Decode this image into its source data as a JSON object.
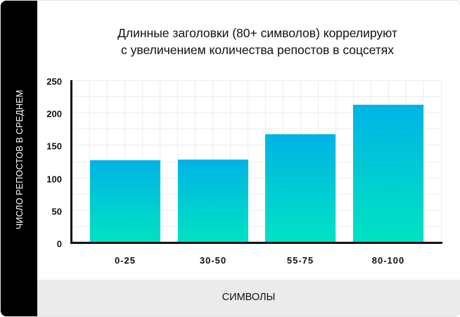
{
  "chart_data": {
    "type": "bar",
    "title": "Длинные заголовки (80+ символов) коррелируют с увеличением количества репостов в соцсетях",
    "title_lines": [
      "Длинные заголовки (80+ символов) коррелируют",
      "с увеличением количества репостов в соцсетях"
    ],
    "xlabel": "СИМВОЛЫ",
    "ylabel": "ЧИСЛО РЕПОСТОВ В СРЕДНЕМ",
    "categories": [
      "0-25",
      "30-50",
      "55-75",
      "80-100"
    ],
    "values": [
      127,
      128,
      167,
      212
    ],
    "ylim": [
      0,
      250
    ],
    "yticks": [
      "0",
      "50",
      "100",
      "150",
      "200",
      "250"
    ],
    "grid": true,
    "legend": null,
    "colors": {
      "bar_top": "#00b3e4",
      "bar_bottom": "#00e3c3",
      "ylabel_band": "#000000",
      "footer_band": "#ebebeb"
    }
  }
}
